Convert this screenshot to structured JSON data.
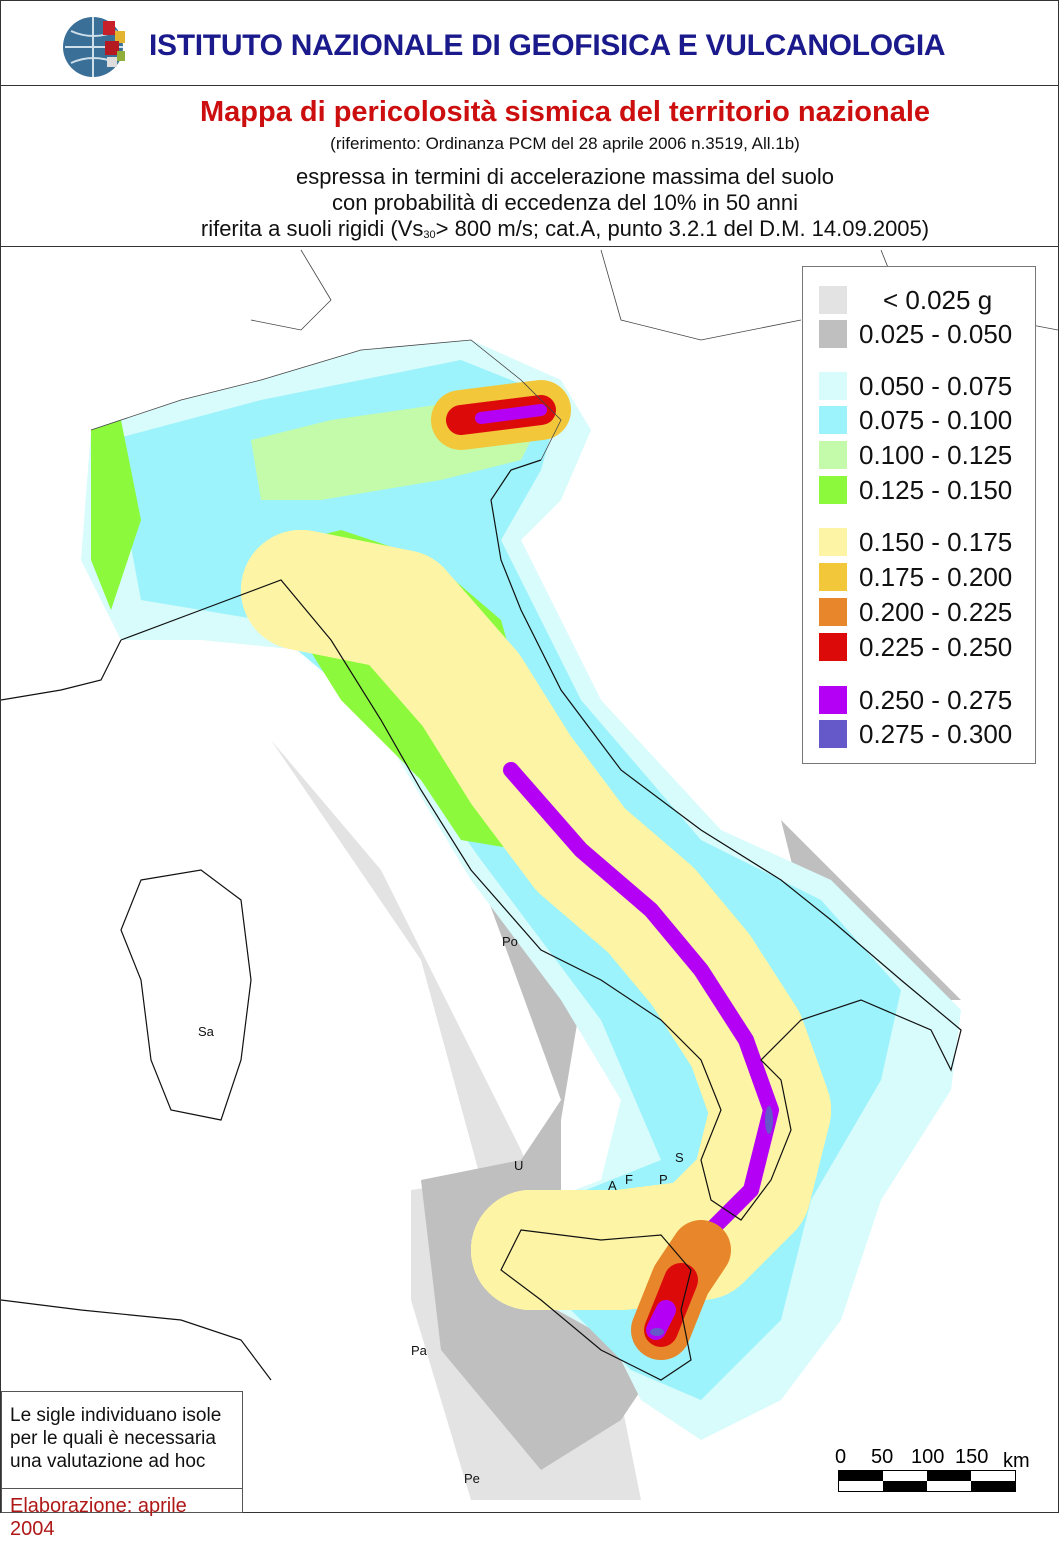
{
  "header": {
    "institute": "ISTITUTO NAZIONALE DI GEOFISICA E VULCANOLOGIA"
  },
  "titles": {
    "title": "Mappa di pericolosità sismica del territorio nazionale",
    "reference": "(riferimento: Ordinanza PCM del 28 aprile 2006 n.3519, All.1b)",
    "line1": "espressa in termini di accelerazione massima del suolo",
    "line2": "con probabilità di eccedenza del 10% in 50 anni",
    "line3_a": "riferita a suoli rigidi (Vs",
    "line3_sub": "30",
    "line3_b": "> 800 m/s; cat.A, punto 3.2.1 del D.M. 14.09.2005)"
  },
  "legend": {
    "items": [
      {
        "label": "< 0.025 g",
        "color": "#e3e3e3"
      },
      {
        "label": "0.025 - 0.050",
        "color": "#bfbfbf"
      },
      {
        "label": "0.050 - 0.075",
        "color": "#d8fbfb"
      },
      {
        "label": "0.075 - 0.100",
        "color": "#9cf3fb"
      },
      {
        "label": "0.100 - 0.125",
        "color": "#c3fbaa"
      },
      {
        "label": "0.125 - 0.150",
        "color": "#8cf93d"
      },
      {
        "label": "0.150 - 0.175",
        "color": "#fdf5a5"
      },
      {
        "label": "0.175 - 0.200",
        "color": "#f2c73a"
      },
      {
        "label": "0.200 - 0.225",
        "color": "#e7862a"
      },
      {
        "label": "0.225 - 0.250",
        "color": "#dd0a0a"
      },
      {
        "label": "0.250 - 0.275",
        "color": "#b400f5"
      },
      {
        "label": "0.275 - 0.300",
        "color": "#6558c8"
      }
    ]
  },
  "islands": [
    "Po",
    "Sa",
    "U",
    "A",
    "F",
    "P",
    "S",
    "Pa",
    "Pe"
  ],
  "note": {
    "text": "Le sigle individuano isole per le quali è necessaria una valutazione ad hoc",
    "date": "Elaborazione: aprile 2004"
  },
  "scale": {
    "labels": [
      "0",
      "50",
      "100",
      "150",
      "km"
    ]
  }
}
